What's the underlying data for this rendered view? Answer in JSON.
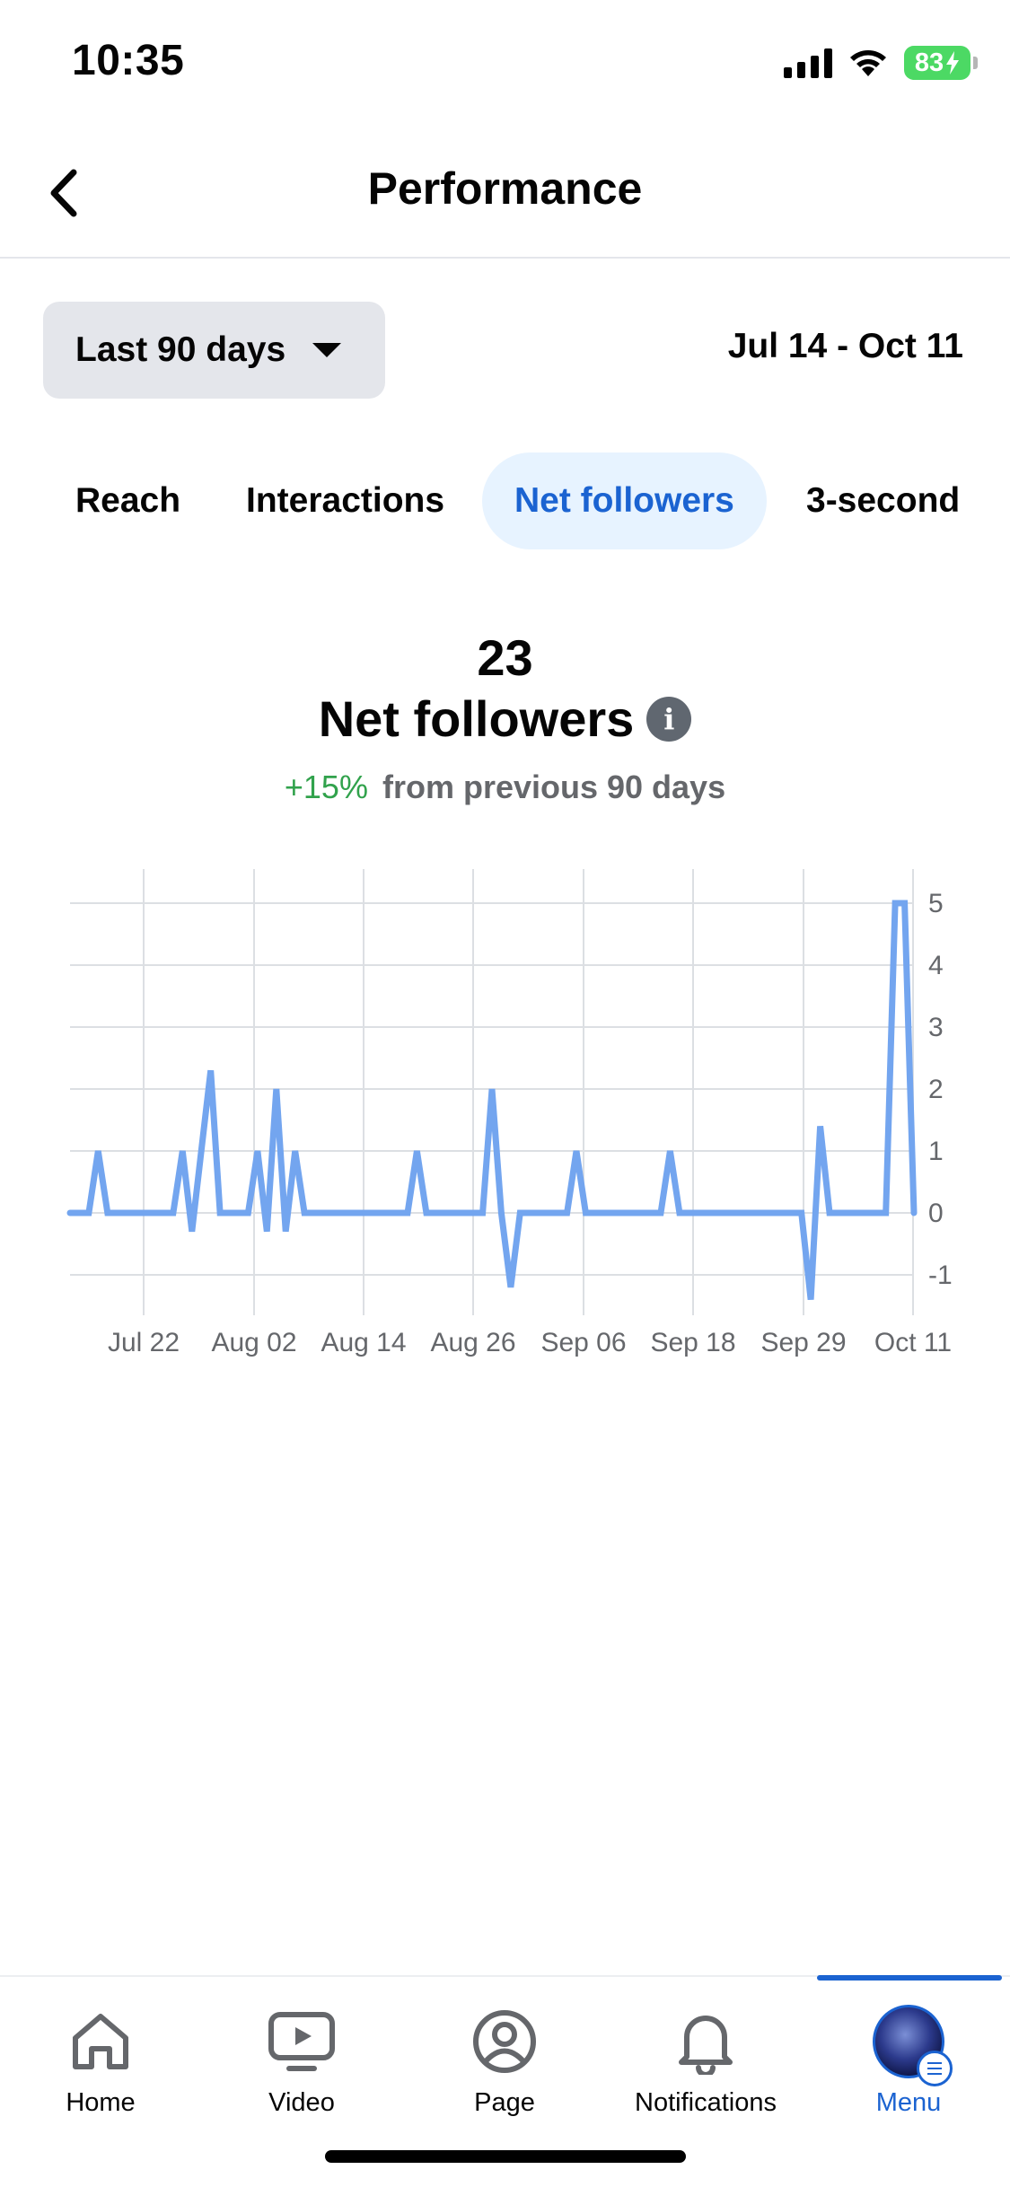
{
  "status_bar": {
    "time": "10:35",
    "battery": "83"
  },
  "header": {
    "title": "Performance"
  },
  "filters": {
    "range_label": "Last 90 days",
    "date_range": "Jul 14 - Oct 11"
  },
  "metric_tabs": [
    {
      "label": "Reach",
      "active": false
    },
    {
      "label": "Interactions",
      "active": false
    },
    {
      "label": "Net followers",
      "active": true
    },
    {
      "label": "3-second",
      "active": false
    }
  ],
  "summary": {
    "value": "23",
    "title": "Net followers",
    "change_pct": "+15%",
    "change_text": "from previous 90 days"
  },
  "colors": {
    "accent": "#1b63d1",
    "line": "#73a5ef",
    "positive": "#31a24c"
  },
  "chart_data": {
    "type": "line",
    "x_tick_labels": [
      "Jul 22",
      "Aug 02",
      "Aug 14",
      "Aug 26",
      "Sep 06",
      "Sep 18",
      "Sep 29",
      "Oct 11"
    ],
    "y_tick_labels": [
      "5",
      "4",
      "3",
      "2",
      "1",
      "0",
      "-1"
    ],
    "ylim": [
      -1,
      5
    ],
    "grid": true,
    "series": [
      {
        "values": [
          0,
          0,
          0,
          1,
          0,
          0,
          0,
          0,
          0,
          0,
          0,
          0,
          1,
          -0.3,
          1,
          2.3,
          0,
          0,
          0,
          0,
          1,
          -0.3,
          2,
          -0.3,
          1,
          0,
          0,
          0,
          0,
          0,
          0,
          0,
          0,
          0,
          0,
          0,
          0,
          1,
          0,
          0,
          0,
          0,
          0,
          0,
          0,
          2,
          0,
          -1.2,
          0,
          0,
          0,
          0,
          0,
          0,
          1,
          0,
          0,
          0,
          0,
          0,
          0,
          0,
          0,
          0,
          1,
          0,
          0,
          0,
          0,
          0,
          0,
          0,
          0,
          0,
          0,
          0,
          0,
          0,
          0,
          -1.4,
          1.4,
          0,
          0,
          0,
          0,
          0,
          0,
          0,
          5,
          5,
          0
        ]
      }
    ]
  },
  "tab_bar": [
    {
      "label": "Home",
      "icon": "home-icon",
      "active": false
    },
    {
      "label": "Video",
      "icon": "video-icon",
      "active": false
    },
    {
      "label": "Page",
      "icon": "page-icon",
      "active": false
    },
    {
      "label": "Notifications",
      "icon": "bell-icon",
      "active": false
    },
    {
      "label": "Menu",
      "icon": "avatar",
      "active": true
    }
  ]
}
